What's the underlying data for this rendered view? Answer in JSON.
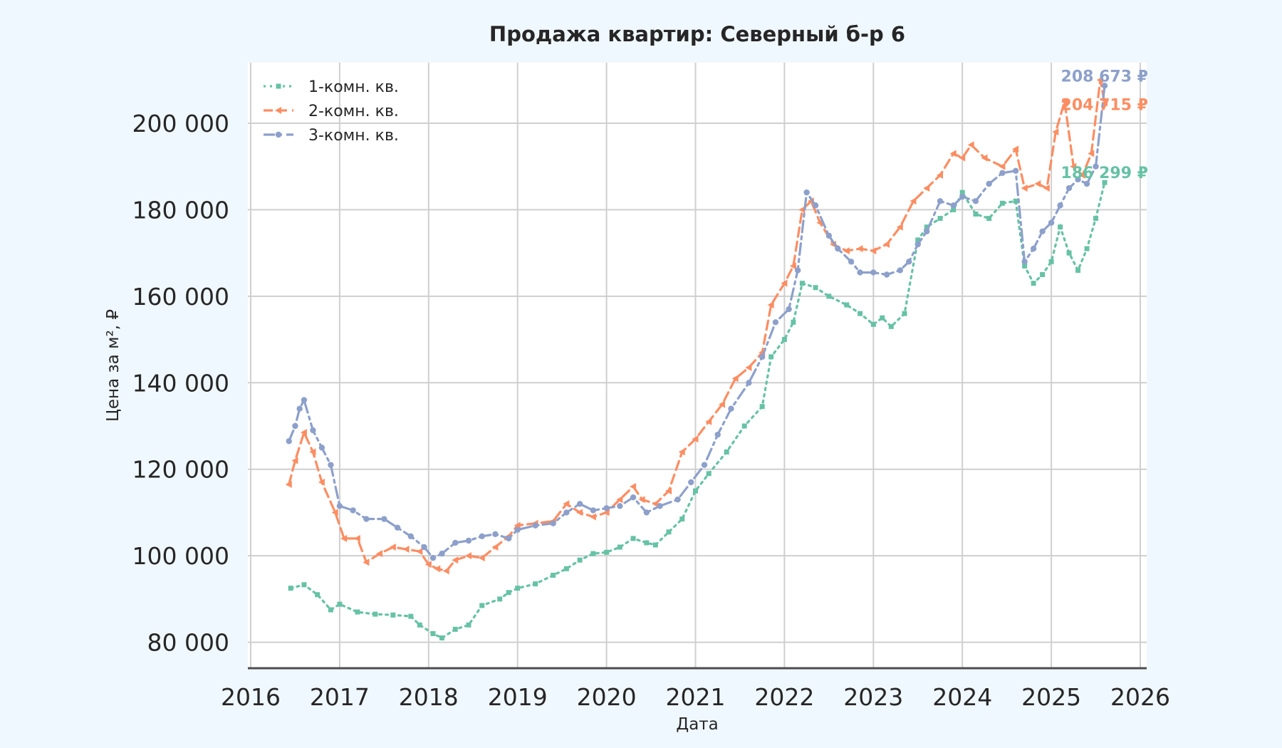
{
  "chart_data": {
    "type": "line",
    "title": "Продажа квартир: Северный б-р 6",
    "xlabel": "Дата",
    "ylabel": "Цена за м², ₽",
    "xlim": [
      2016,
      2026
    ],
    "ylim": [
      74000,
      214000
    ],
    "x_ticks": [
      "2016",
      "2017",
      "2018",
      "2019",
      "2020",
      "2021",
      "2022",
      "2023",
      "2024",
      "2025",
      "2026"
    ],
    "y_ticks": [
      {
        "value": 80000,
        "label": "80 000"
      },
      {
        "value": 100000,
        "label": "100 000"
      },
      {
        "value": 120000,
        "label": "120 000"
      },
      {
        "value": 140000,
        "label": "140 000"
      },
      {
        "value": 160000,
        "label": "160 000"
      },
      {
        "value": 180000,
        "label": "180 000"
      },
      {
        "value": 200000,
        "label": "200 000"
      }
    ],
    "grid": true,
    "legend_position": "top-left",
    "series": [
      {
        "name": "1-комн. кв.",
        "color": "#66c2a5",
        "style": "dotted",
        "marker": "square",
        "end_label": "186 299 ₽",
        "points": [
          [
            2016.45,
            92500
          ],
          [
            2016.6,
            93300
          ],
          [
            2016.75,
            91000
          ],
          [
            2016.9,
            87500
          ],
          [
            2017.0,
            88800
          ],
          [
            2017.2,
            87000
          ],
          [
            2017.4,
            86500
          ],
          [
            2017.6,
            86300
          ],
          [
            2017.8,
            86000
          ],
          [
            2017.9,
            84000
          ],
          [
            2018.05,
            82000
          ],
          [
            2018.15,
            81000
          ],
          [
            2018.3,
            83000
          ],
          [
            2018.45,
            84000
          ],
          [
            2018.6,
            88500
          ],
          [
            2018.8,
            90000
          ],
          [
            2018.9,
            91500
          ],
          [
            2019.0,
            92500
          ],
          [
            2019.2,
            93500
          ],
          [
            2019.4,
            95500
          ],
          [
            2019.55,
            97000
          ],
          [
            2019.7,
            99000
          ],
          [
            2019.85,
            100500
          ],
          [
            2020.0,
            100800
          ],
          [
            2020.15,
            102000
          ],
          [
            2020.3,
            104000
          ],
          [
            2020.45,
            103000
          ],
          [
            2020.55,
            102500
          ],
          [
            2020.7,
            105500
          ],
          [
            2020.85,
            108500
          ],
          [
            2021.0,
            115000
          ],
          [
            2021.15,
            119000
          ],
          [
            2021.35,
            124000
          ],
          [
            2021.55,
            130000
          ],
          [
            2021.75,
            134500
          ],
          [
            2021.85,
            146000
          ],
          [
            2022.0,
            150000
          ],
          [
            2022.1,
            154000
          ],
          [
            2022.2,
            163000
          ],
          [
            2022.35,
            162000
          ],
          [
            2022.5,
            160000
          ],
          [
            2022.7,
            158000
          ],
          [
            2022.85,
            156000
          ],
          [
            2023.0,
            153500
          ],
          [
            2023.1,
            155000
          ],
          [
            2023.2,
            153000
          ],
          [
            2023.35,
            156000
          ],
          [
            2023.5,
            173000
          ],
          [
            2023.6,
            176000
          ],
          [
            2023.75,
            178000
          ],
          [
            2023.9,
            180000
          ],
          [
            2024.0,
            184000
          ],
          [
            2024.15,
            179000
          ],
          [
            2024.3,
            178000
          ],
          [
            2024.45,
            181500
          ],
          [
            2024.6,
            182000
          ],
          [
            2024.7,
            167000
          ],
          [
            2024.8,
            163000
          ],
          [
            2024.9,
            165000
          ],
          [
            2025.0,
            168000
          ],
          [
            2025.1,
            176000
          ],
          [
            2025.2,
            170000
          ],
          [
            2025.3,
            166000
          ],
          [
            2025.4,
            171000
          ],
          [
            2025.5,
            178000
          ],
          [
            2025.6,
            186299
          ]
        ]
      },
      {
        "name": "2-комн. кв.",
        "color": "#fc8d62",
        "style": "dashed",
        "marker": "triangle-left",
        "end_label": "204 715 ₽",
        "points": [
          [
            2016.43,
            116500
          ],
          [
            2016.5,
            122000
          ],
          [
            2016.6,
            128500
          ],
          [
            2016.7,
            124000
          ],
          [
            2016.8,
            117000
          ],
          [
            2016.95,
            110000
          ],
          [
            2017.05,
            104000
          ],
          [
            2017.2,
            104000
          ],
          [
            2017.3,
            98500
          ],
          [
            2017.45,
            100500
          ],
          [
            2017.6,
            102000
          ],
          [
            2017.75,
            101500
          ],
          [
            2017.9,
            101000
          ],
          [
            2018.0,
            98000
          ],
          [
            2018.1,
            97000
          ],
          [
            2018.2,
            96500
          ],
          [
            2018.3,
            99000
          ],
          [
            2018.45,
            100000
          ],
          [
            2018.6,
            99500
          ],
          [
            2018.75,
            102000
          ],
          [
            2018.9,
            104500
          ],
          [
            2019.0,
            107000
          ],
          [
            2019.2,
            107500
          ],
          [
            2019.4,
            108000
          ],
          [
            2019.55,
            112000
          ],
          [
            2019.7,
            110000
          ],
          [
            2019.85,
            109000
          ],
          [
            2020.0,
            110000
          ],
          [
            2020.15,
            113000
          ],
          [
            2020.3,
            116000
          ],
          [
            2020.4,
            113000
          ],
          [
            2020.55,
            112000
          ],
          [
            2020.7,
            115000
          ],
          [
            2020.85,
            124000
          ],
          [
            2021.0,
            127000
          ],
          [
            2021.15,
            131000
          ],
          [
            2021.3,
            135000
          ],
          [
            2021.45,
            141000
          ],
          [
            2021.6,
            143500
          ],
          [
            2021.75,
            147000
          ],
          [
            2021.85,
            158000
          ],
          [
            2022.0,
            163000
          ],
          [
            2022.1,
            167000
          ],
          [
            2022.2,
            180000
          ],
          [
            2022.3,
            182000
          ],
          [
            2022.4,
            177000
          ],
          [
            2022.55,
            172000
          ],
          [
            2022.7,
            170500
          ],
          [
            2022.85,
            171000
          ],
          [
            2023.0,
            170500
          ],
          [
            2023.15,
            172000
          ],
          [
            2023.3,
            176000
          ],
          [
            2023.45,
            182000
          ],
          [
            2023.6,
            185000
          ],
          [
            2023.75,
            188000
          ],
          [
            2023.9,
            193000
          ],
          [
            2024.0,
            192000
          ],
          [
            2024.1,
            195000
          ],
          [
            2024.25,
            192000
          ],
          [
            2024.45,
            190000
          ],
          [
            2024.6,
            194000
          ],
          [
            2024.7,
            185000
          ],
          [
            2024.85,
            186000
          ],
          [
            2024.95,
            185000
          ],
          [
            2025.05,
            198000
          ],
          [
            2025.15,
            205000
          ],
          [
            2025.25,
            190000
          ],
          [
            2025.35,
            188000
          ],
          [
            2025.45,
            193000
          ],
          [
            2025.55,
            210000
          ],
          [
            2025.6,
            204715
          ]
        ]
      },
      {
        "name": "3-комн. кв.",
        "color": "#8da0cb",
        "style": "dashdot",
        "marker": "circle",
        "end_label": "208 673 ₽",
        "points": [
          [
            2016.43,
            126500
          ],
          [
            2016.5,
            130000
          ],
          [
            2016.55,
            134000
          ],
          [
            2016.6,
            136000
          ],
          [
            2016.7,
            129000
          ],
          [
            2016.8,
            125000
          ],
          [
            2016.9,
            121000
          ],
          [
            2017.0,
            111500
          ],
          [
            2017.15,
            110500
          ],
          [
            2017.3,
            108500
          ],
          [
            2017.5,
            108500
          ],
          [
            2017.65,
            106500
          ],
          [
            2017.8,
            104500
          ],
          [
            2017.95,
            102000
          ],
          [
            2018.05,
            99500
          ],
          [
            2018.15,
            100500
          ],
          [
            2018.3,
            103000
          ],
          [
            2018.45,
            103500
          ],
          [
            2018.6,
            104500
          ],
          [
            2018.75,
            105000
          ],
          [
            2018.9,
            104000
          ],
          [
            2019.0,
            106000
          ],
          [
            2019.2,
            107000
          ],
          [
            2019.4,
            107500
          ],
          [
            2019.55,
            110000
          ],
          [
            2019.7,
            112000
          ],
          [
            2019.85,
            110500
          ],
          [
            2020.0,
            111000
          ],
          [
            2020.15,
            111500
          ],
          [
            2020.3,
            113500
          ],
          [
            2020.45,
            110000
          ],
          [
            2020.6,
            111500
          ],
          [
            2020.8,
            113000
          ],
          [
            2020.95,
            117000
          ],
          [
            2021.1,
            121000
          ],
          [
            2021.25,
            128000
          ],
          [
            2021.4,
            134000
          ],
          [
            2021.6,
            140000
          ],
          [
            2021.75,
            146000
          ],
          [
            2021.9,
            154000
          ],
          [
            2022.05,
            157000
          ],
          [
            2022.15,
            166000
          ],
          [
            2022.25,
            184000
          ],
          [
            2022.35,
            181000
          ],
          [
            2022.5,
            174000
          ],
          [
            2022.6,
            171000
          ],
          [
            2022.75,
            168000
          ],
          [
            2022.85,
            165500
          ],
          [
            2023.0,
            165500
          ],
          [
            2023.15,
            165000
          ],
          [
            2023.3,
            166000
          ],
          [
            2023.4,
            168000
          ],
          [
            2023.5,
            172000
          ],
          [
            2023.6,
            175000
          ],
          [
            2023.75,
            182000
          ],
          [
            2023.9,
            181000
          ],
          [
            2024.0,
            183000
          ],
          [
            2024.15,
            182000
          ],
          [
            2024.3,
            186000
          ],
          [
            2024.45,
            188500
          ],
          [
            2024.6,
            189000
          ],
          [
            2024.7,
            168000
          ],
          [
            2024.8,
            171000
          ],
          [
            2024.9,
            175000
          ],
          [
            2025.0,
            177000
          ],
          [
            2025.1,
            181000
          ],
          [
            2025.2,
            185000
          ],
          [
            2025.3,
            187000
          ],
          [
            2025.4,
            186000
          ],
          [
            2025.5,
            190000
          ],
          [
            2025.6,
            208673
          ]
        ]
      }
    ]
  }
}
